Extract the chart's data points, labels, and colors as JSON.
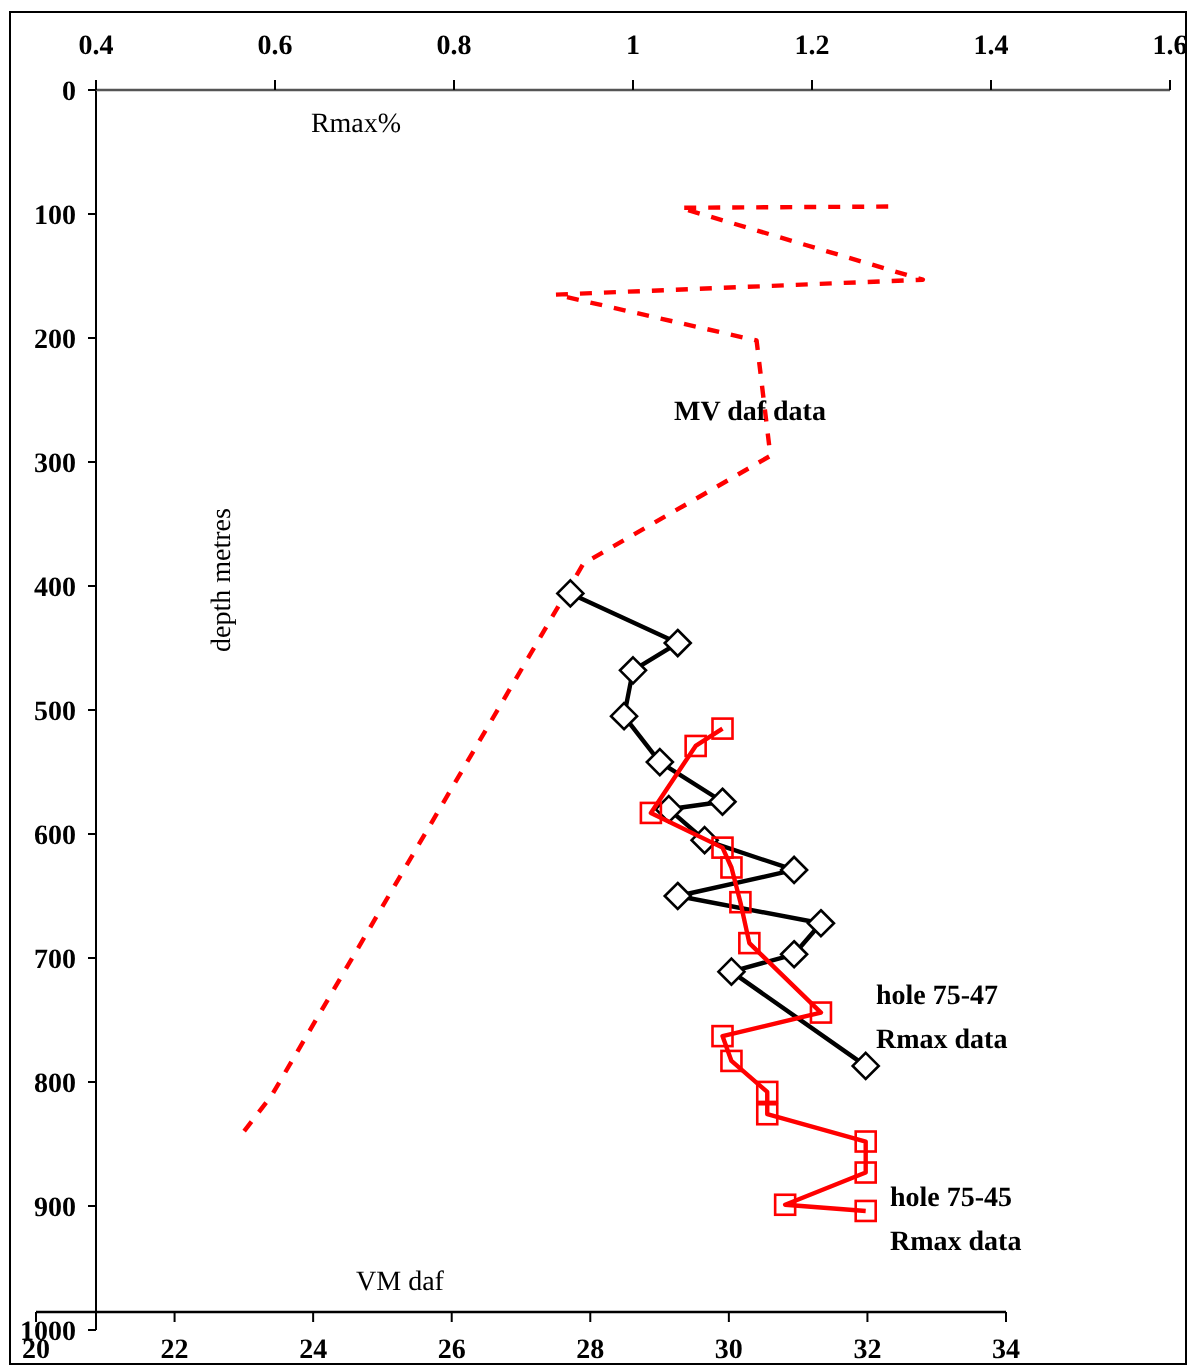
{
  "chart_data": {
    "type": "line",
    "xlabel": "VM daf",
    "x2label": "Rmax%",
    "ylabel": "depth metres",
    "xlim": [
      20,
      34
    ],
    "xticks": [
      20,
      22,
      24,
      26,
      28,
      30,
      32,
      34
    ],
    "x2lim": [
      0.4,
      1.6
    ],
    "x2ticks": [
      0.4,
      0.6,
      0.8,
      1,
      1.2,
      1.4,
      1.6
    ],
    "ylim": [
      1000,
      0
    ],
    "yticks": [
      0,
      100,
      200,
      300,
      400,
      500,
      600,
      700,
      800,
      900,
      1000
    ],
    "series": [
      {
        "name": "MV daf data",
        "color": "#ff0000",
        "line_style": "dashed",
        "marker": "none",
        "x": [
          32.3,
          29.3,
          32.8,
          27.5,
          30.4,
          30.6,
          27.9,
          23.4,
          23.0
        ],
        "values": [
          94,
          95,
          153,
          165,
          202,
          295,
          382,
          811,
          840
        ]
      },
      {
        "name": "hole 75-47 Rmax data",
        "color": "#000000",
        "axis": "x2",
        "line_style": "solid",
        "marker": "diamond",
        "x": [
          0.93,
          1.05,
          1.0,
          0.99,
          1.03,
          1.1,
          1.04,
          1.08,
          1.18,
          1.05,
          1.21,
          1.18,
          1.11,
          1.26
        ],
        "values": [
          406,
          446,
          468,
          505,
          542,
          574,
          580,
          605,
          629,
          650,
          672,
          697,
          711,
          787
        ]
      },
      {
        "name": "hole 75-45 Rmax data",
        "color": "#ff0000",
        "axis": "x2",
        "line_style": "solid",
        "marker": "square",
        "x": [
          1.1,
          1.07,
          1.02,
          1.1,
          1.11,
          1.12,
          1.13,
          1.21,
          1.1,
          1.11,
          1.15,
          1.15,
          1.26,
          1.26,
          1.17,
          1.26
        ],
        "values": [
          515,
          529,
          583,
          611,
          627,
          655,
          688,
          744,
          763,
          783,
          808,
          826,
          848,
          873,
          899,
          904
        ]
      }
    ]
  }
}
